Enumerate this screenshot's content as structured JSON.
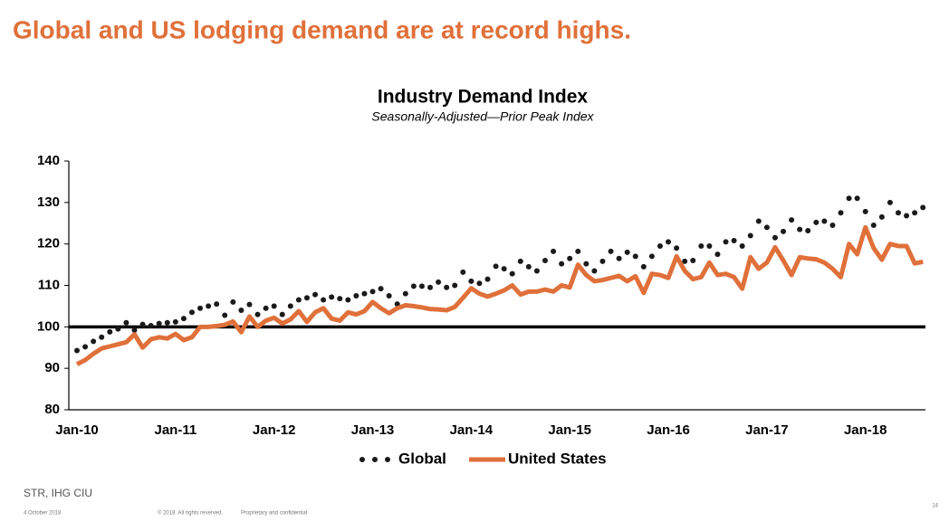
{
  "slide": {
    "headline": "Global and US lodging demand are at record highs.",
    "source": "STR, IHG CIU",
    "footer_date": "4 October 2018",
    "footer_rights": "© 2018.  All rights reserved.",
    "footer_confidential": "Proprietary and confidential",
    "page_number": "14"
  },
  "chart_data": {
    "type": "line",
    "title": "Industry Demand Index",
    "subtitle": "Seasonally-Adjusted—Prior Peak Index",
    "categories": [
      "Jan-10",
      null,
      null,
      null,
      null,
      null,
      null,
      null,
      null,
      null,
      null,
      null,
      "Jan-11",
      null,
      null,
      null,
      null,
      null,
      null,
      null,
      null,
      null,
      null,
      null,
      "Jan-12",
      null,
      null,
      null,
      null,
      null,
      null,
      null,
      null,
      null,
      null,
      null,
      "Jan-13",
      null,
      null,
      null,
      null,
      null,
      null,
      null,
      null,
      null,
      null,
      null,
      "Jan-14",
      null,
      null,
      null,
      null,
      null,
      null,
      null,
      null,
      null,
      null,
      null,
      "Jan-15",
      null,
      null,
      null,
      null,
      null,
      null,
      null,
      null,
      null,
      null,
      null,
      "Jan-16",
      null,
      null,
      null,
      null,
      null,
      null,
      null,
      null,
      null,
      null,
      null,
      "Jan-17",
      null,
      null,
      null,
      null,
      null,
      null,
      null,
      null,
      null,
      null,
      null,
      "Jan-18",
      null,
      null,
      null,
      null,
      null,
      null,
      null
    ],
    "series": [
      {
        "name": "Global",
        "color": "#1a1a1a",
        "style": "dots",
        "values": [
          94.3,
          95.2,
          96.5,
          97.5,
          98.8,
          99.5,
          101.0,
          99.2,
          100.6,
          100.3,
          100.8,
          101.0,
          101.2,
          102.0,
          103.5,
          104.5,
          105.0,
          105.5,
          102.8,
          106.0,
          104.0,
          105.4,
          103.0,
          104.5,
          105.0,
          103.0,
          105.0,
          106.5,
          107.0,
          107.8,
          106.5,
          107.2,
          106.8,
          106.5,
          107.5,
          108.0,
          108.5,
          109.2,
          107.5,
          105.5,
          108.0,
          109.8,
          109.8,
          109.5,
          110.8,
          109.5,
          110.0,
          113.2,
          111.0,
          110.5,
          111.5,
          114.6,
          114.0,
          112.8,
          115.8,
          114.5,
          113.5,
          116.0,
          118.2,
          115.2,
          116.5,
          118.2,
          115.2,
          113.5,
          115.8,
          118.2,
          116.5,
          118.0,
          117.0,
          114.5,
          117.0,
          119.5,
          120.5,
          119.0,
          115.8,
          116.0,
          119.5,
          119.5,
          117.5,
          120.5,
          120.8,
          119.5,
          122.0,
          125.5,
          124.0,
          121.5,
          123.0,
          125.8,
          123.5,
          123.2,
          125.2,
          125.5,
          124.5,
          127.5,
          131.0,
          131.0,
          127.8,
          124.5,
          126.5,
          130.0,
          127.5,
          126.8,
          127.5,
          128.8
        ]
      },
      {
        "name": "United States",
        "color": "#e0703a",
        "style": "line",
        "values": [
          91.0,
          92.0,
          93.5,
          94.8,
          95.3,
          95.8,
          96.3,
          98.2,
          95.0,
          97.0,
          97.5,
          97.2,
          98.3,
          96.8,
          97.5,
          100.0,
          100.0,
          100.2,
          100.5,
          101.3,
          98.7,
          102.5,
          100.0,
          101.5,
          102.2,
          100.8,
          101.8,
          103.8,
          101.2,
          103.5,
          104.5,
          102.0,
          101.5,
          103.5,
          103.0,
          103.8,
          106.0,
          104.5,
          103.3,
          104.5,
          105.2,
          105.0,
          104.7,
          104.3,
          104.2,
          104.0,
          104.8,
          107.0,
          109.3,
          108.0,
          107.3,
          108.0,
          108.8,
          110.0,
          107.8,
          108.5,
          108.5,
          109.0,
          108.5,
          110.0,
          109.5,
          115.0,
          112.5,
          111.0,
          111.3,
          111.8,
          112.3,
          111.0,
          112.2,
          108.2,
          112.8,
          112.5,
          111.8,
          117.0,
          113.5,
          111.5,
          112.0,
          115.5,
          112.5,
          112.8,
          112.0,
          109.2,
          116.8,
          114.0,
          115.5,
          119.2,
          116.0,
          112.5,
          116.8,
          116.5,
          116.3,
          115.5,
          114.0,
          112.0,
          120.0,
          117.5,
          124.0,
          119.0,
          116.2,
          120.0,
          119.5,
          119.5,
          115.3,
          115.7
        ]
      }
    ],
    "ylim": [
      80,
      140
    ],
    "yticks": [
      80,
      90,
      100,
      110,
      120,
      130,
      140
    ],
    "reference_line": 100,
    "grid": false,
    "legend": "bottom"
  }
}
